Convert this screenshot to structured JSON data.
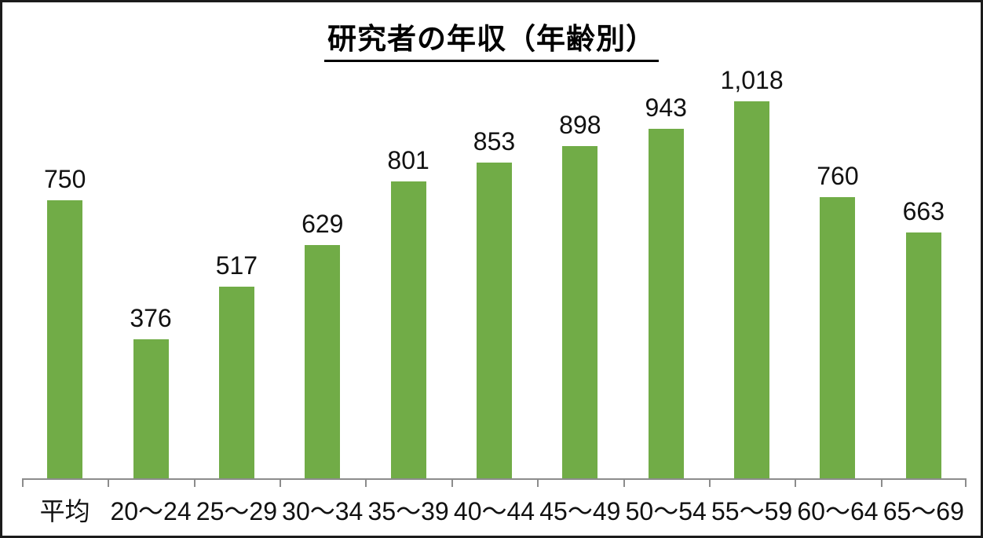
{
  "window": {
    "background_color": "#ffffff",
    "border_color": "#1b1b1b"
  },
  "chart_data": {
    "type": "bar",
    "title": "研究者の年収（年齢別）",
    "title_underlined": true,
    "categories": [
      "平均",
      "20～24",
      "25～29",
      "30～34",
      "35～39",
      "40～44",
      "45～49",
      "50～54",
      "55～59",
      "60～64",
      "65～69"
    ],
    "values": [
      750,
      376,
      517,
      629,
      801,
      853,
      898,
      943,
      1018,
      760,
      663
    ],
    "value_labels": [
      "750",
      "376",
      "517",
      "629",
      "801",
      "853",
      "898",
      "943",
      "1,018",
      "760",
      "663"
    ],
    "xlabel": "",
    "ylabel": "",
    "ylim": [
      0,
      1018
    ],
    "grid": false,
    "legend": false,
    "y_axis_visible": false,
    "bar_color": "#71AC47",
    "axis_color": "#8C8C8C",
    "text_color": "#111111"
  }
}
